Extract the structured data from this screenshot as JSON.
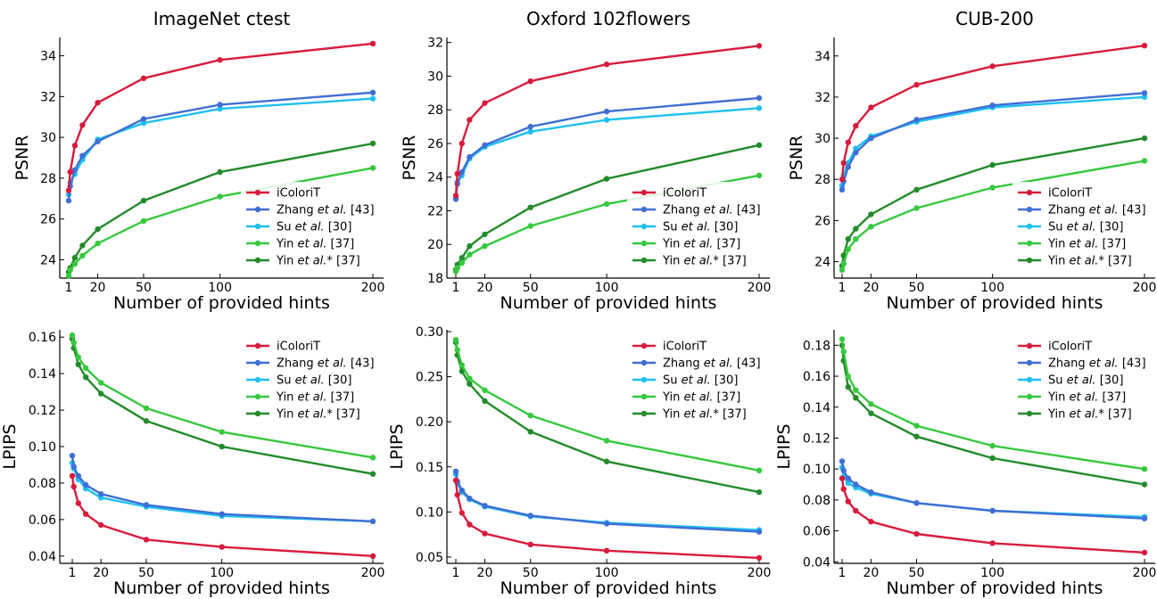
{
  "colors": {
    "iColoriT": "#d81b3c",
    "Zhang": "#3f6fd4",
    "Su": "#1ec0f0",
    "Yin": "#36c83e",
    "YinStar": "#228b2a"
  },
  "legend_refs": {
    "iColoriT": {
      "name": "iColoriT",
      "pre": "",
      "ital": "",
      "post": ""
    },
    "Zhang": {
      "name": "Zhang et al. [43]",
      "pre": "Zhang ",
      "ital": "et al.",
      "post": " [43]"
    },
    "Su": {
      "name": "Su et al. [30]",
      "pre": "Su ",
      "ital": "et al.",
      "post": " [30]"
    },
    "Yin": {
      "name": "Yin et al. [37]",
      "pre": "Yin ",
      "ital": "et al.",
      "post": " [37]"
    },
    "YinStar": {
      "name": "Yin et al.* [37]",
      "pre": "Yin ",
      "ital": "et al.",
      "post": "* [37]"
    }
  },
  "chart_data": [
    {
      "type": "line",
      "title": "ImageNet ctest",
      "xlabel": "Number of provided hints",
      "ylabel": "PSNR",
      "x": [
        1,
        2,
        5,
        10,
        20,
        50,
        100,
        200
      ],
      "xticks": [
        1,
        20,
        50,
        100,
        200
      ],
      "ylim": [
        23.1,
        34.9
      ],
      "yticks": [
        24,
        26,
        28,
        30,
        32,
        34
      ],
      "ytick_decimals": 0,
      "legend": "lower-right",
      "series": [
        {
          "key": "iColoriT",
          "values": [
            27.4,
            28.3,
            29.6,
            30.6,
            31.7,
            32.9,
            33.8,
            34.6
          ]
        },
        {
          "key": "Zhang",
          "values": [
            26.9,
            27.6,
            28.4,
            29.1,
            29.8,
            30.9,
            31.6,
            32.2
          ]
        },
        {
          "key": "Su",
          "values": [
            27.2,
            27.8,
            28.2,
            28.9,
            29.9,
            30.7,
            31.4,
            31.9
          ]
        },
        {
          "key": "Yin",
          "values": [
            23.2,
            23.5,
            23.8,
            24.2,
            24.8,
            25.9,
            27.1,
            28.5
          ]
        },
        {
          "key": "YinStar",
          "values": [
            23.4,
            23.6,
            24.1,
            24.7,
            25.5,
            26.9,
            28.3,
            29.7
          ]
        }
      ]
    },
    {
      "type": "line",
      "title": "Oxford 102flowers",
      "xlabel": "Number of provided hints",
      "ylabel": "PSNR",
      "x": [
        1,
        2,
        5,
        10,
        20,
        50,
        100,
        200
      ],
      "xticks": [
        1,
        20,
        50,
        100,
        200
      ],
      "ylim": [
        18.0,
        32.3
      ],
      "yticks": [
        18,
        20,
        22,
        24,
        26,
        28,
        30,
        32
      ],
      "ytick_decimals": 0,
      "legend": "lower-right",
      "series": [
        {
          "key": "iColoriT",
          "values": [
            22.9,
            24.2,
            26.0,
            27.4,
            28.4,
            29.7,
            30.7,
            31.8
          ]
        },
        {
          "key": "Zhang",
          "values": [
            22.7,
            23.6,
            24.3,
            25.2,
            25.9,
            27.0,
            27.9,
            28.7
          ]
        },
        {
          "key": "Su",
          "values": [
            22.8,
            23.7,
            24.1,
            25.1,
            25.8,
            26.7,
            27.4,
            28.1
          ]
        },
        {
          "key": "Yin",
          "values": [
            18.4,
            18.6,
            18.9,
            19.4,
            19.9,
            21.1,
            22.4,
            24.1
          ]
        },
        {
          "key": "YinStar",
          "values": [
            18.5,
            18.8,
            19.2,
            19.9,
            20.6,
            22.2,
            23.9,
            25.9
          ]
        }
      ]
    },
    {
      "type": "line",
      "title": "CUB-200",
      "xlabel": "Number of provided hints",
      "ylabel": "PSNR",
      "x": [
        1,
        2,
        5,
        10,
        20,
        50,
        100,
        200
      ],
      "xticks": [
        1,
        20,
        50,
        100,
        200
      ],
      "ylim": [
        23.2,
        34.9
      ],
      "yticks": [
        24,
        26,
        28,
        30,
        32,
        34
      ],
      "ytick_decimals": 0,
      "legend": "lower-right",
      "series": [
        {
          "key": "iColoriT",
          "values": [
            28.0,
            28.8,
            29.8,
            30.6,
            31.5,
            32.6,
            33.5,
            34.5
          ]
        },
        {
          "key": "Zhang",
          "values": [
            27.5,
            27.9,
            28.6,
            29.3,
            30.0,
            30.9,
            31.6,
            32.2
          ]
        },
        {
          "key": "Su",
          "values": [
            27.7,
            28.2,
            28.8,
            29.5,
            30.1,
            30.8,
            31.5,
            32.0
          ]
        },
        {
          "key": "Yin",
          "values": [
            23.6,
            23.9,
            24.6,
            25.1,
            25.7,
            26.6,
            27.6,
            28.9
          ]
        },
        {
          "key": "YinStar",
          "values": [
            23.8,
            24.3,
            25.1,
            25.6,
            26.3,
            27.5,
            28.7,
            30.0
          ]
        }
      ]
    },
    {
      "type": "line",
      "title": "",
      "xlabel": "Number of provided hints",
      "ylabel": "LPIPS",
      "x": [
        1,
        2,
        5,
        10,
        20,
        50,
        100,
        200
      ],
      "xticks": [
        1,
        20,
        50,
        100,
        200
      ],
      "ylim": [
        0.036,
        0.164
      ],
      "yticks": [
        0.04,
        0.06,
        0.08,
        0.1,
        0.12,
        0.14,
        0.16
      ],
      "ytick_decimals": 2,
      "legend": "top-right",
      "series": [
        {
          "key": "iColoriT",
          "values": [
            0.084,
            0.078,
            0.069,
            0.063,
            0.057,
            0.049,
            0.045,
            0.04
          ]
        },
        {
          "key": "Zhang",
          "values": [
            0.095,
            0.089,
            0.084,
            0.079,
            0.074,
            0.068,
            0.063,
            0.059
          ]
        },
        {
          "key": "Su",
          "values": [
            0.091,
            0.088,
            0.082,
            0.077,
            0.072,
            0.067,
            0.062,
            0.059
          ]
        },
        {
          "key": "Yin",
          "values": [
            0.161,
            0.157,
            0.149,
            0.143,
            0.135,
            0.121,
            0.108,
            0.094
          ]
        },
        {
          "key": "YinStar",
          "values": [
            0.159,
            0.154,
            0.145,
            0.138,
            0.129,
            0.114,
            0.1,
            0.085
          ]
        }
      ]
    },
    {
      "type": "line",
      "title": "",
      "xlabel": "Number of provided hints",
      "ylabel": "LPIPS",
      "x": [
        1,
        2,
        5,
        10,
        20,
        50,
        100,
        200
      ],
      "xticks": [
        1,
        20,
        50,
        100,
        200
      ],
      "ylim": [
        0.043,
        0.302
      ],
      "yticks": [
        0.05,
        0.1,
        0.15,
        0.2,
        0.25,
        0.3
      ],
      "ytick_decimals": 2,
      "legend": "top-right",
      "series": [
        {
          "key": "iColoriT",
          "values": [
            0.135,
            0.119,
            0.099,
            0.086,
            0.076,
            0.064,
            0.057,
            0.049
          ]
        },
        {
          "key": "Zhang",
          "values": [
            0.145,
            0.134,
            0.124,
            0.115,
            0.107,
            0.096,
            0.087,
            0.078
          ]
        },
        {
          "key": "Su",
          "values": [
            0.142,
            0.132,
            0.122,
            0.114,
            0.106,
            0.095,
            0.088,
            0.08
          ]
        },
        {
          "key": "Yin",
          "values": [
            0.291,
            0.28,
            0.263,
            0.248,
            0.235,
            0.207,
            0.179,
            0.146
          ]
        },
        {
          "key": "YinStar",
          "values": [
            0.288,
            0.274,
            0.256,
            0.242,
            0.223,
            0.189,
            0.156,
            0.122
          ]
        }
      ]
    },
    {
      "type": "line",
      "title": "",
      "xlabel": "Number of provided hints",
      "ylabel": "LPIPS",
      "x": [
        1,
        2,
        5,
        10,
        20,
        50,
        100,
        200
      ],
      "xticks": [
        1,
        20,
        50,
        100,
        200
      ],
      "ylim": [
        0.039,
        0.19
      ],
      "yticks": [
        0.04,
        0.06,
        0.08,
        0.1,
        0.12,
        0.14,
        0.16,
        0.18
      ],
      "ytick_decimals": 2,
      "legend": "top-right",
      "series": [
        {
          "key": "iColoriT",
          "values": [
            0.094,
            0.087,
            0.079,
            0.073,
            0.066,
            0.058,
            0.052,
            0.046
          ]
        },
        {
          "key": "Zhang",
          "values": [
            0.105,
            0.099,
            0.094,
            0.09,
            0.085,
            0.078,
            0.073,
            0.068
          ]
        },
        {
          "key": "Su",
          "values": [
            0.101,
            0.095,
            0.091,
            0.088,
            0.084,
            0.078,
            0.073,
            0.069
          ]
        },
        {
          "key": "Yin",
          "values": [
            0.184,
            0.176,
            0.16,
            0.151,
            0.142,
            0.128,
            0.115,
            0.1
          ]
        },
        {
          "key": "YinStar",
          "values": [
            0.18,
            0.17,
            0.153,
            0.146,
            0.136,
            0.121,
            0.107,
            0.09
          ]
        }
      ]
    }
  ]
}
